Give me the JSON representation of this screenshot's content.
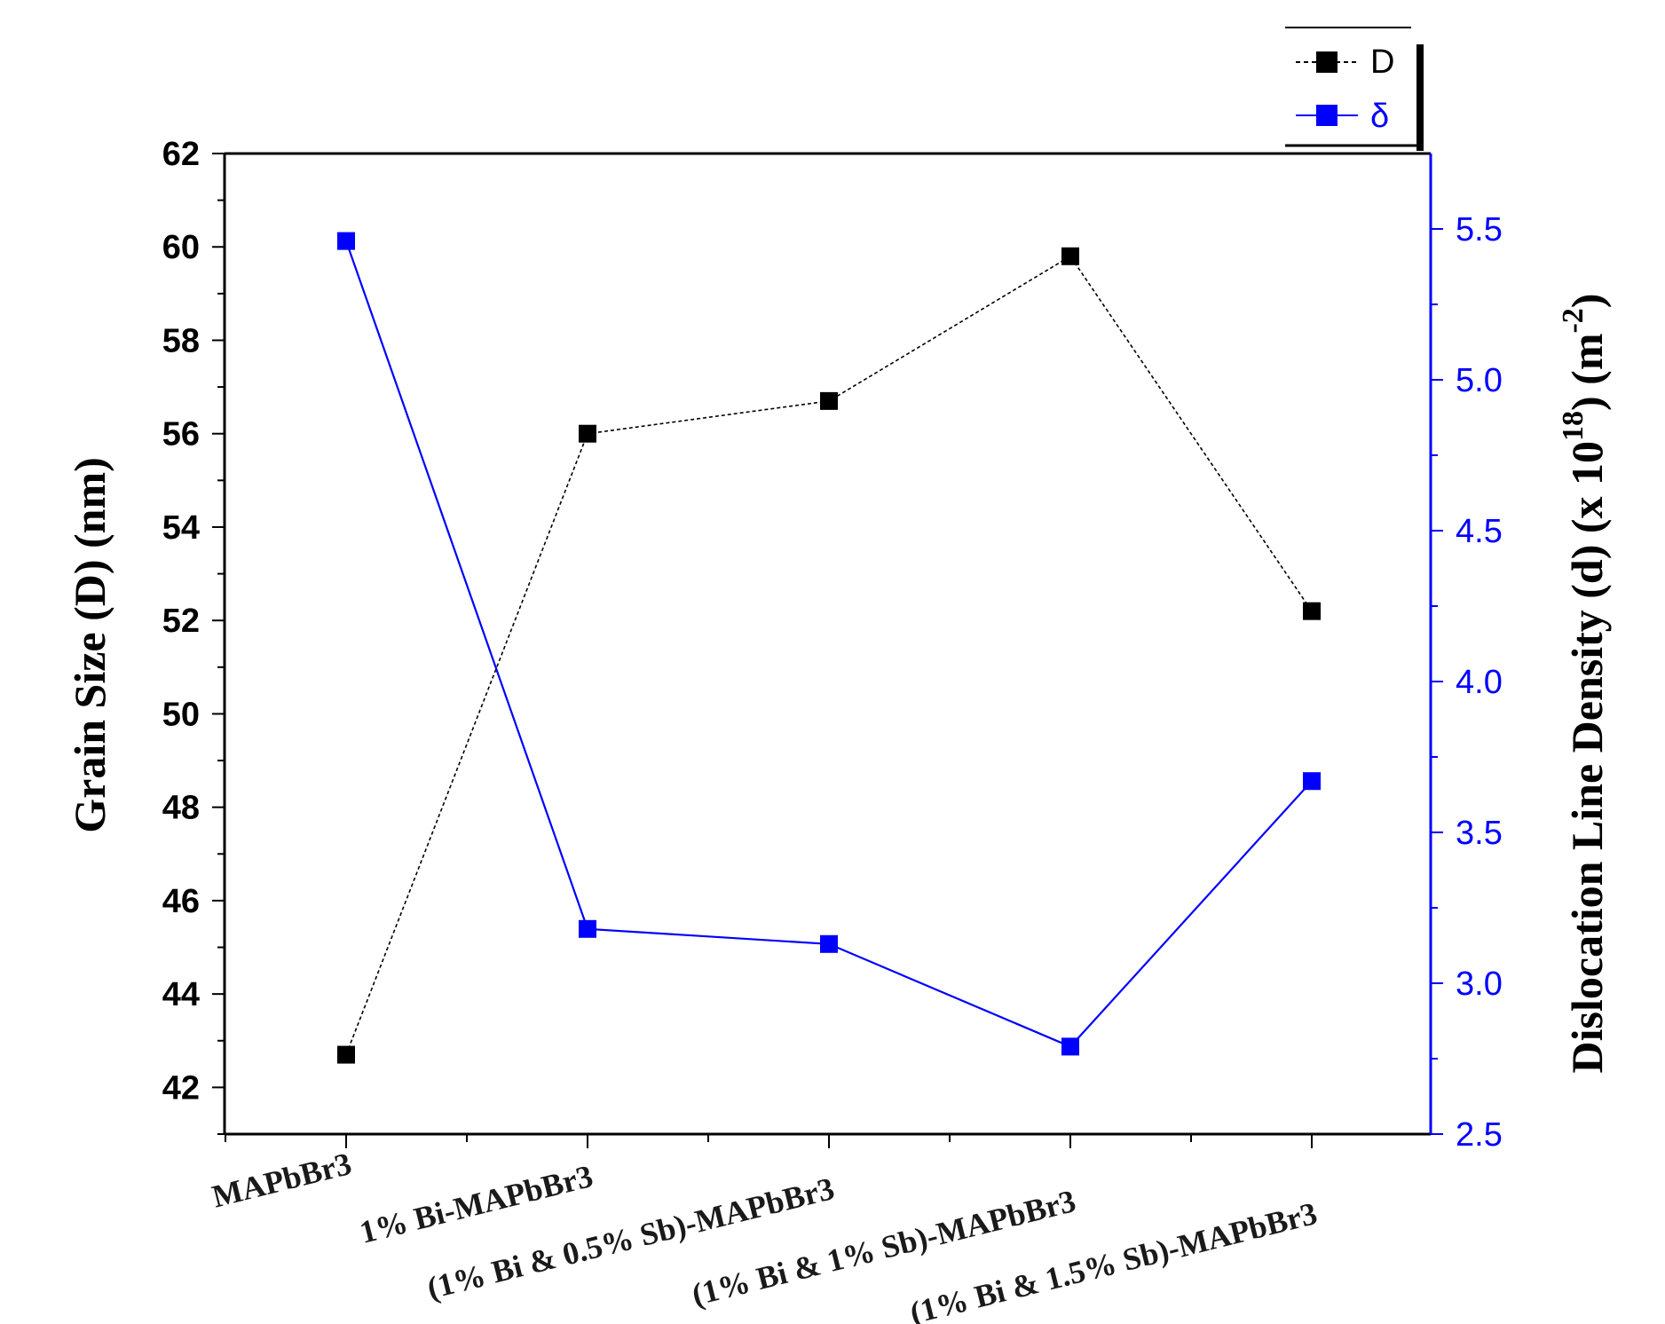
{
  "chart_data": {
    "type": "line",
    "categories": [
      "MAPbBr3",
      "1% Bi-MAPbBr3",
      "(1% Bi & 0.5% Sb)-MAPbBr3",
      "(1% Bi & 1% Sb)-MAPbBr3",
      "(1% Bi & 1.5% Sb)-MAPbBr3"
    ],
    "series": [
      {
        "name": "D",
        "axis": "left",
        "color": "#000000",
        "line_style": "dashed",
        "values": [
          42.7,
          56.0,
          56.7,
          59.8,
          52.2
        ]
      },
      {
        "name": "δ",
        "axis": "right",
        "color": "#0000ff",
        "line_style": "solid",
        "values": [
          5.46,
          3.18,
          3.13,
          2.79,
          3.67
        ]
      }
    ],
    "y_left": {
      "label": "Grain Size (D) (nm)",
      "ylim": [
        41,
        62
      ],
      "ticks": [
        "42",
        "44",
        "46",
        "48",
        "50",
        "52",
        "54",
        "56",
        "58",
        "60",
        "62"
      ]
    },
    "y_right": {
      "label_main": "Dislocation Line Density (d) (x 10",
      "label_sup1": "18",
      "label_mid": ") (m",
      "label_sup2": "-2",
      "label_end": ")",
      "ylim": [
        2.5,
        5.75
      ],
      "ticks": [
        "2.5",
        "3.0",
        "3.5",
        "4.0",
        "4.5",
        "5.0",
        "5.5"
      ],
      "color": "#0000ff"
    },
    "legend": {
      "position": "top-right",
      "entries": [
        "D",
        "δ"
      ]
    },
    "grid": false
  }
}
